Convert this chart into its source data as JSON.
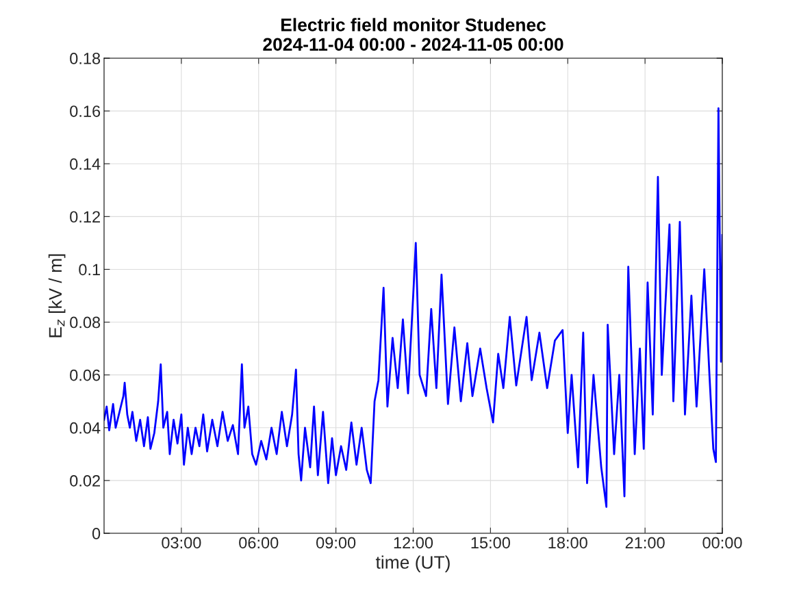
{
  "chart_data": {
    "type": "line",
    "title": "Electric field monitor Studenec\n2024-11-04 00:00 - 2024-11-05 00:00",
    "xlabel": "time (UT)",
    "ylabel": "E$_{z}$ [kV / m]",
    "x": [
      0.0,
      0.1,
      0.2,
      0.35,
      0.45,
      0.6,
      0.75,
      0.8,
      0.9,
      1.0,
      1.1,
      1.25,
      1.4,
      1.55,
      1.7,
      1.8,
      1.95,
      2.1,
      2.2,
      2.3,
      2.45,
      2.55,
      2.7,
      2.85,
      3.0,
      3.1,
      3.25,
      3.4,
      3.55,
      3.7,
      3.85,
      4.0,
      4.2,
      4.4,
      4.6,
      4.8,
      5.0,
      5.2,
      5.35,
      5.45,
      5.6,
      5.75,
      5.9,
      6.1,
      6.3,
      6.5,
      6.7,
      6.9,
      7.1,
      7.3,
      7.45,
      7.55,
      7.65,
      7.8,
      8.0,
      8.15,
      8.3,
      8.5,
      8.7,
      8.85,
      9.0,
      9.2,
      9.4,
      9.6,
      9.8,
      10.0,
      10.2,
      10.35,
      10.5,
      10.65,
      10.85,
      11.0,
      11.2,
      11.4,
      11.6,
      11.8,
      12.0,
      12.1,
      12.25,
      12.5,
      12.7,
      12.9,
      13.1,
      13.35,
      13.6,
      13.85,
      14.1,
      14.3,
      14.6,
      14.85,
      15.1,
      15.3,
      15.5,
      15.75,
      16.0,
      16.4,
      16.6,
      16.9,
      17.2,
      17.5,
      17.8,
      18.0,
      18.15,
      18.4,
      18.6,
      18.75,
      19.0,
      19.3,
      19.5,
      19.55,
      19.8,
      20.0,
      20.2,
      20.35,
      20.6,
      20.8,
      20.95,
      21.1,
      21.3,
      21.5,
      21.65,
      21.95,
      22.1,
      22.35,
      22.55,
      22.8,
      23.0,
      23.3,
      23.5,
      23.65,
      23.75,
      23.85,
      23.95,
      24.0
    ],
    "series": [
      {
        "color": "#0000ff",
        "values": [
          0.043,
          0.048,
          0.039,
          0.049,
          0.04,
          0.046,
          0.052,
          0.057,
          0.045,
          0.04,
          0.046,
          0.035,
          0.043,
          0.033,
          0.044,
          0.032,
          0.038,
          0.05,
          0.064,
          0.04,
          0.046,
          0.03,
          0.043,
          0.034,
          0.045,
          0.026,
          0.04,
          0.03,
          0.04,
          0.033,
          0.045,
          0.031,
          0.043,
          0.033,
          0.046,
          0.035,
          0.041,
          0.03,
          0.064,
          0.04,
          0.048,
          0.03,
          0.026,
          0.035,
          0.028,
          0.04,
          0.03,
          0.046,
          0.033,
          0.045,
          0.062,
          0.03,
          0.02,
          0.04,
          0.025,
          0.048,
          0.022,
          0.046,
          0.019,
          0.036,
          0.022,
          0.033,
          0.024,
          0.042,
          0.026,
          0.04,
          0.024,
          0.019,
          0.05,
          0.058,
          0.093,
          0.048,
          0.074,
          0.055,
          0.081,
          0.053,
          0.09,
          0.11,
          0.06,
          0.052,
          0.085,
          0.055,
          0.098,
          0.049,
          0.078,
          0.05,
          0.072,
          0.052,
          0.07,
          0.055,
          0.042,
          0.068,
          0.055,
          0.082,
          0.056,
          0.082,
          0.058,
          0.076,
          0.055,
          0.073,
          0.077,
          0.038,
          0.06,
          0.025,
          0.076,
          0.019,
          0.06,
          0.025,
          0.01,
          0.079,
          0.03,
          0.06,
          0.014,
          0.101,
          0.03,
          0.07,
          0.032,
          0.095,
          0.045,
          0.135,
          0.06,
          0.117,
          0.05,
          0.118,
          0.045,
          0.09,
          0.048,
          0.1,
          0.06,
          0.032,
          0.027,
          0.161,
          0.065,
          0.113
        ]
      }
    ],
    "xlim": [
      0,
      24
    ],
    "xticks": [
      {
        "value": 3,
        "label": "03:00"
      },
      {
        "value": 6,
        "label": "06:00"
      },
      {
        "value": 9,
        "label": "09:00"
      },
      {
        "value": 12,
        "label": "12:00"
      },
      {
        "value": 15,
        "label": "15:00"
      },
      {
        "value": 18,
        "label": "18:00"
      },
      {
        "value": 21,
        "label": "21:00"
      },
      {
        "value": 24,
        "label": "00:00"
      }
    ],
    "ylim": [
      0,
      0.18
    ],
    "yticks": [
      0,
      0.02,
      0.04,
      0.06,
      0.08,
      {
        "value": 0.1,
        "label": "0.1"
      },
      0.12,
      0.14,
      0.16,
      0.18
    ],
    "grid": true,
    "legend": false,
    "marker": "none",
    "line_style": "solid"
  }
}
